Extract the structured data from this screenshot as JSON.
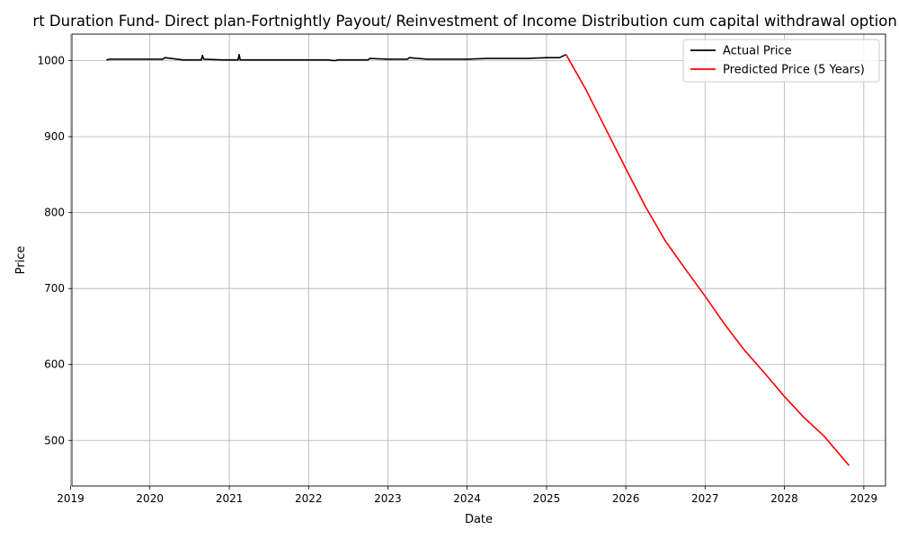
{
  "chart_data": {
    "type": "line",
    "title": "rt Duration Fund- Direct plan-Fortnightly Payout/ Reinvestment of Income Distribution cum capital withdrawal option (IDC",
    "xlabel": "Date",
    "ylabel": "Price",
    "xlim": [
      "2019-01-07",
      "2029-04-11"
    ],
    "ylim": [
      440,
      1035
    ],
    "grid": true,
    "legend_position": "top-right",
    "x_ticks": [
      "2019",
      "2020",
      "2021",
      "2022",
      "2023",
      "2024",
      "2025",
      "2026",
      "2027",
      "2028",
      "2029"
    ],
    "y_ticks": [
      500,
      600,
      700,
      800,
      900,
      1000
    ],
    "series": [
      {
        "name": "Actual Price",
        "color": "#000000",
        "x": [
          "2019-06-15",
          "2019-07-01",
          "2019-09-01",
          "2019-12-01",
          "2020-03-01",
          "2020-03-10",
          "2020-06-01",
          "2020-08-25",
          "2020-08-30",
          "2020-09-05",
          "2020-12-01",
          "2021-02-10",
          "2021-02-15",
          "2021-02-20",
          "2021-06-01",
          "2021-10-01",
          "2022-01-01",
          "2022-04-01",
          "2022-05-01",
          "2022-05-15",
          "2022-08-01",
          "2022-10-01",
          "2022-10-10",
          "2023-01-01",
          "2023-04-01",
          "2023-04-10",
          "2023-07-01",
          "2023-10-01",
          "2024-01-01",
          "2024-04-01",
          "2024-07-01",
          "2024-10-01",
          "2025-01-01",
          "2025-03-01",
          "2025-04-01"
        ],
        "y": [
          1001,
          1002,
          1002,
          1002,
          1002,
          1004,
          1001,
          1001,
          1007,
          1002,
          1001,
          1001,
          1008,
          1001,
          1001,
          1001,
          1001,
          1001,
          1000,
          1001,
          1001,
          1001,
          1003,
          1002,
          1002,
          1004,
          1002,
          1002,
          1002,
          1003,
          1003,
          1003,
          1004,
          1004,
          1008
        ]
      },
      {
        "name": "Predicted Price (5 Years)",
        "color": "#ff0000",
        "x": [
          "2025-04-01",
          "2025-07-01",
          "2025-10-01",
          "2026-01-01",
          "2026-04-01",
          "2026-07-01",
          "2026-10-01",
          "2027-01-01",
          "2027-04-01",
          "2027-07-01",
          "2027-10-01",
          "2028-01-01",
          "2028-04-01",
          "2028-07-01",
          "2028-10-25"
        ],
        "y": [
          1008,
          962,
          910,
          858,
          808,
          763,
          726,
          690,
          653,
          619,
          589,
          558,
          530,
          506,
          467
        ]
      }
    ]
  }
}
